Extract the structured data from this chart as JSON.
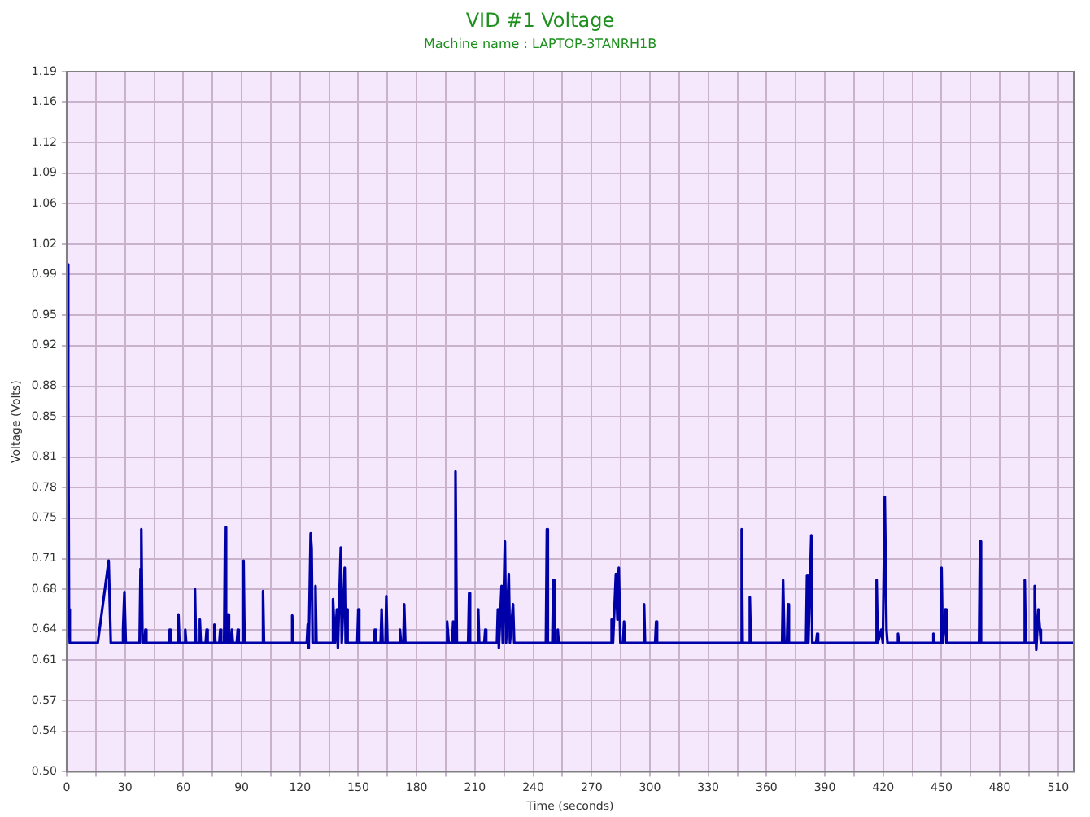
{
  "chart_data": {
    "type": "line",
    "title": "VID #1 Voltage",
    "subtitle": "Machine name : LAPTOP-3TANRH1B",
    "xlabel": "Time (seconds)",
    "ylabel": "Voltage (Volts)",
    "xlim": [
      0,
      518
    ],
    "xticks": [
      0,
      {
        "value": 15,
        "label": null
      },
      30,
      {
        "value": 45,
        "label": null
      },
      60,
      {
        "value": 75,
        "label": null
      },
      90,
      {
        "value": 105,
        "label": null
      },
      120,
      {
        "value": 135,
        "label": null
      },
      150,
      {
        "value": 165,
        "label": null
      },
      180,
      {
        "value": 195,
        "label": null
      },
      210,
      {
        "value": 225,
        "label": null
      },
      240,
      {
        "value": 255,
        "label": null
      },
      270,
      {
        "value": 285,
        "label": null
      },
      300,
      {
        "value": 315,
        "label": null
      },
      330,
      {
        "value": 345,
        "label": null
      },
      360,
      {
        "value": 375,
        "label": null
      },
      390,
      {
        "value": 405,
        "label": null
      },
      420,
      {
        "value": 435,
        "label": null
      },
      450,
      {
        "value": 465,
        "label": null
      },
      480,
      {
        "value": 495,
        "label": null
      },
      510
    ],
    "ylim": [
      0.5,
      1.19
    ],
    "yticks": [
      {
        "value": 0.5,
        "label": "0.50"
      },
      0.54,
      0.57,
      0.61,
      0.64,
      0.68,
      0.71,
      0.75,
      0.78,
      0.81,
      0.85,
      0.88,
      0.92,
      0.95,
      0.99,
      1.02,
      1.06,
      1.09,
      1.12,
      1.16,
      1.19
    ],
    "grid": true,
    "legend": false,
    "marker": "none",
    "line_style": "solid",
    "series": [
      {
        "color": "#0000a8",
        "x": [
          0.4,
          0.8,
          1.2,
          1.6,
          16,
          21.6,
          22.7,
          28.8,
          29,
          29.7,
          30.4,
          37.5,
          38,
          38.4,
          39,
          40,
          40.5,
          41,
          52.5,
          53,
          53.5,
          57,
          57.5,
          58,
          60.5,
          61,
          61.5,
          65.5,
          66,
          66.5,
          68,
          68.5,
          69,
          71.5,
          72,
          72.5,
          75.5,
          76,
          76.5,
          78.5,
          79,
          79.5,
          81,
          81.5,
          82,
          82.5,
          83,
          83.5,
          84.5,
          85,
          85.5,
          87.5,
          88,
          88.5,
          90.5,
          91,
          91.5,
          100.5,
          101,
          101.5,
          115.5,
          116,
          116.5,
          123.5,
          124,
          124.5,
          125.5,
          126,
          126.5,
          127.5,
          128,
          128.5,
          136.5,
          137,
          138,
          139,
          139.5,
          141,
          141.5,
          143,
          143.5,
          144,
          144.5,
          149.5,
          150,
          150.5,
          158,
          158.5,
          159,
          161.5,
          162,
          162.5,
          164,
          164.4,
          165,
          171,
          171.4,
          172,
          173.2,
          173.6,
          174.2,
          195.2,
          195.7,
          196.5,
          198.3,
          198.8,
          199.5,
          200,
          200.7,
          206.5,
          207,
          207.5,
          211.2,
          211.7,
          212.2,
          214.8,
          215.3,
          215.8,
          221.3,
          221.8,
          222.3,
          223.7,
          224.3,
          225.4,
          226,
          227.4,
          228,
          229.6,
          230.2,
          246.5,
          247,
          247.5,
          249.8,
          250.3,
          250.8,
          252.1,
          252.6,
          253.1,
          279.8,
          280.3,
          281,
          282.5,
          283.3,
          284,
          284.8,
          286.2,
          286.7,
          287.2,
          296.5,
          297,
          297.5,
          302.7,
          303.2,
          303.7,
          346.7,
          347.2,
          347.7,
          350.9,
          351.4,
          351.9,
          368,
          368.5,
          369.2,
          370.5,
          371,
          371.5,
          380.3,
          380.8,
          381.5,
          383,
          383.5,
          385.5,
          386,
          386.5,
          416.1,
          416.6,
          417.2,
          419,
          419.8,
          420.8,
          421.7,
          422.2,
          427.1,
          427.6,
          428.1,
          445.3,
          445.8,
          446.3,
          449.5,
          450,
          450.6,
          452,
          452.5,
          469.3,
          469.8,
          470.3,
          492.3,
          492.8,
          493.3,
          497.4,
          497.9,
          498.7,
          499.8,
          500.6,
          501.1,
          518
        ],
        "values": [
          1.0,
          0.88,
          0.66,
          0.627,
          0.627,
          0.708,
          0.627,
          0.627,
          0.64,
          0.677,
          0.627,
          0.627,
          0.7,
          0.739,
          0.627,
          0.627,
          0.64,
          0.627,
          0.627,
          0.64,
          0.627,
          0.627,
          0.655,
          0.627,
          0.627,
          0.64,
          0.627,
          0.627,
          0.68,
          0.627,
          0.627,
          0.65,
          0.627,
          0.627,
          0.64,
          0.627,
          0.627,
          0.645,
          0.627,
          0.627,
          0.64,
          0.627,
          0.627,
          0.741,
          0.627,
          0.627,
          0.655,
          0.627,
          0.627,
          0.64,
          0.627,
          0.627,
          0.64,
          0.627,
          0.627,
          0.708,
          0.627,
          0.627,
          0.678,
          0.627,
          0.627,
          0.654,
          0.627,
          0.627,
          0.645,
          0.622,
          0.735,
          0.72,
          0.627,
          0.627,
          0.683,
          0.627,
          0.627,
          0.67,
          0.627,
          0.66,
          0.622,
          0.721,
          0.627,
          0.701,
          0.627,
          0.66,
          0.627,
          0.627,
          0.66,
          0.627,
          0.627,
          0.64,
          0.627,
          0.627,
          0.66,
          0.627,
          0.627,
          0.673,
          0.627,
          0.627,
          0.64,
          0.627,
          0.627,
          0.665,
          0.627,
          0.627,
          0.648,
          0.627,
          0.627,
          0.648,
          0.627,
          0.796,
          0.627,
          0.627,
          0.676,
          0.627,
          0.627,
          0.66,
          0.627,
          0.627,
          0.64,
          0.627,
          0.627,
          0.66,
          0.622,
          0.683,
          0.627,
          0.727,
          0.627,
          0.695,
          0.627,
          0.665,
          0.627,
          0.627,
          0.739,
          0.627,
          0.627,
          0.689,
          0.627,
          0.627,
          0.64,
          0.627,
          0.627,
          0.65,
          0.627,
          0.695,
          0.65,
          0.701,
          0.627,
          0.627,
          0.648,
          0.627,
          0.627,
          0.665,
          0.627,
          0.627,
          0.648,
          0.627,
          0.627,
          0.739,
          0.627,
          0.627,
          0.672,
          0.627,
          0.627,
          0.689,
          0.627,
          0.627,
          0.665,
          0.627,
          0.627,
          0.694,
          0.627,
          0.733,
          0.627,
          0.627,
          0.636,
          0.627,
          0.627,
          0.689,
          0.627,
          0.64,
          0.627,
          0.771,
          0.64,
          0.627,
          0.627,
          0.636,
          0.627,
          0.627,
          0.636,
          0.627,
          0.627,
          0.701,
          0.627,
          0.66,
          0.627,
          0.627,
          0.727,
          0.627,
          0.627,
          0.689,
          0.627,
          0.627,
          0.683,
          0.62,
          0.66,
          0.64,
          0.627,
          0.627
        ]
      }
    ]
  }
}
